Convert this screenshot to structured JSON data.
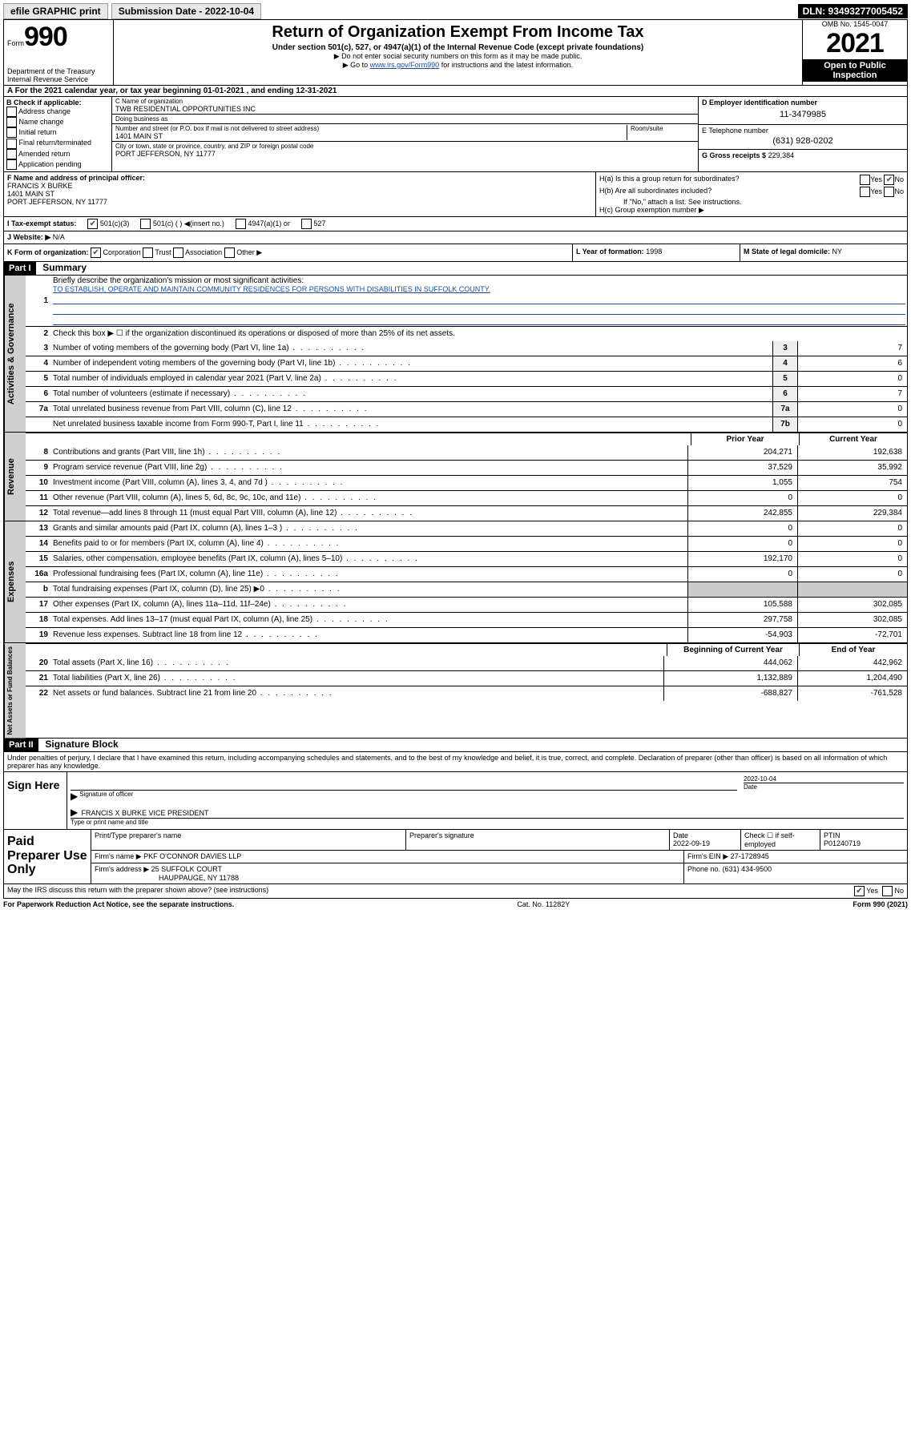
{
  "topbar": {
    "efile": "efile GRAPHIC print",
    "submission_label": "Submission Date - 2022-10-04",
    "dln": "DLN: 93493277005452"
  },
  "header": {
    "form_prefix": "Form",
    "form_no": "990",
    "dept": "Department of the Treasury",
    "irs": "Internal Revenue Service",
    "title": "Return of Organization Exempt From Income Tax",
    "sub": "Under section 501(c), 527, or 4947(a)(1) of the Internal Revenue Code (except private foundations)",
    "note1": "▶ Do not enter social security numbers on this form as it may be made public.",
    "note2_pre": "▶ Go to ",
    "note2_link": "www.irs.gov/Form990",
    "note2_post": " for instructions and the latest information.",
    "omb": "OMB No. 1545-0047",
    "year": "2021",
    "open": "Open to Public Inspection"
  },
  "A": {
    "text": "A For the 2021 calendar year, or tax year beginning 01-01-2021   , and ending 12-31-2021"
  },
  "B": {
    "label": "B Check if applicable:",
    "opts": [
      "Address change",
      "Name change",
      "Initial return",
      "Final return/terminated",
      "Amended return",
      "Application pending"
    ]
  },
  "C": {
    "name_lbl": "C Name of organization",
    "name": "TWB RESIDENTIAL OPPORTUNITIES INC",
    "dba_lbl": "Doing business as",
    "dba": "",
    "addr_lbl": "Number and street (or P.O. box if mail is not delivered to street address)",
    "room_lbl": "Room/suite",
    "addr": "1401 MAIN ST",
    "city_lbl": "City or town, state or province, country, and ZIP or foreign postal code",
    "city": "PORT JEFFERSON, NY  11777"
  },
  "D": {
    "lbl": "D Employer identification number",
    "val": "11-3479985"
  },
  "E": {
    "lbl": "E Telephone number",
    "val": "(631) 928-0202"
  },
  "G": {
    "lbl": "G Gross receipts $",
    "val": "229,384"
  },
  "F": {
    "lbl": "F  Name and address of principal officer:",
    "name": "FRANCIS X BURKE",
    "addr1": "1401 MAIN ST",
    "addr2": "PORT JEFFERSON, NY  11777"
  },
  "H": {
    "a": "H(a)  Is this a group return for subordinates?",
    "a_yes": "Yes",
    "a_no": "No",
    "b": "H(b)  Are all subordinates included?",
    "b_yes": "Yes",
    "b_no": "No",
    "b_note": "If \"No,\" attach a list. See instructions.",
    "c": "H(c)  Group exemption number ▶"
  },
  "I": {
    "lbl": "I   Tax-exempt status:",
    "o1": "501(c)(3)",
    "o2": "501(c) (  ) ◀(insert no.)",
    "o3": "4947(a)(1) or",
    "o4": "527"
  },
  "J": {
    "lbl": "J   Website: ▶",
    "val": "N/A"
  },
  "K": {
    "lbl": "K Form of organization:",
    "o1": "Corporation",
    "o2": "Trust",
    "o3": "Association",
    "o4": "Other ▶"
  },
  "L": {
    "lbl": "L Year of formation:",
    "val": "1998"
  },
  "M": {
    "lbl": "M State of legal domicile:",
    "val": "NY"
  },
  "part1": {
    "hdr": "Part I",
    "title": "Summary",
    "q1": "Briefly describe the organization's mission or most significant activities:",
    "mission": "TO ESTABLISH, OPERATE AND MAINTAIN COMMUNITY RESIDENCES FOR PERSONS WITH DISABILITIES IN SUFFOLK COUNTY.",
    "q2": "Check this box ▶ ☐  if the organization discontinued its operations or disposed of more than 25% of its net assets."
  },
  "gov_lines": [
    {
      "n": "3",
      "d": "Number of voting members of the governing body (Part VI, line 1a)",
      "box": "3",
      "v": "7"
    },
    {
      "n": "4",
      "d": "Number of independent voting members of the governing body (Part VI, line 1b)",
      "box": "4",
      "v": "6"
    },
    {
      "n": "5",
      "d": "Total number of individuals employed in calendar year 2021 (Part V, line 2a)",
      "box": "5",
      "v": "0"
    },
    {
      "n": "6",
      "d": "Total number of volunteers (estimate if necessary)",
      "box": "6",
      "v": "7"
    },
    {
      "n": "7a",
      "d": "Total unrelated business revenue from Part VIII, column (C), line 12",
      "box": "7a",
      "v": "0"
    },
    {
      "n": "",
      "d": "Net unrelated business taxable income from Form 990-T, Part I, line 11",
      "box": "7b",
      "v": "0"
    }
  ],
  "col_hdrs": {
    "prior": "Prior Year",
    "current": "Current Year",
    "boy": "Beginning of Current Year",
    "eoy": "End of Year"
  },
  "rev_lines": [
    {
      "n": "8",
      "d": "Contributions and grants (Part VIII, line 1h)",
      "p": "204,271",
      "c": "192,638"
    },
    {
      "n": "9",
      "d": "Program service revenue (Part VIII, line 2g)",
      "p": "37,529",
      "c": "35,992"
    },
    {
      "n": "10",
      "d": "Investment income (Part VIII, column (A), lines 3, 4, and 7d )",
      "p": "1,055",
      "c": "754"
    },
    {
      "n": "11",
      "d": "Other revenue (Part VIII, column (A), lines 5, 6d, 8c, 9c, 10c, and 11e)",
      "p": "0",
      "c": "0"
    },
    {
      "n": "12",
      "d": "Total revenue—add lines 8 through 11 (must equal Part VIII, column (A), line 12)",
      "p": "242,855",
      "c": "229,384"
    }
  ],
  "exp_lines": [
    {
      "n": "13",
      "d": "Grants and similar amounts paid (Part IX, column (A), lines 1–3 )",
      "p": "0",
      "c": "0"
    },
    {
      "n": "14",
      "d": "Benefits paid to or for members (Part IX, column (A), line 4)",
      "p": "0",
      "c": "0"
    },
    {
      "n": "15",
      "d": "Salaries, other compensation, employee benefits (Part IX, column (A), lines 5–10)",
      "p": "192,170",
      "c": "0"
    },
    {
      "n": "16a",
      "d": "Professional fundraising fees (Part IX, column (A), line 11e)",
      "p": "0",
      "c": "0"
    },
    {
      "n": "b",
      "d": "Total fundraising expenses (Part IX, column (D), line 25) ▶0",
      "p": "",
      "c": "",
      "shade": true
    },
    {
      "n": "17",
      "d": "Other expenses (Part IX, column (A), lines 11a–11d, 11f–24e)",
      "p": "105,588",
      "c": "302,085"
    },
    {
      "n": "18",
      "d": "Total expenses. Add lines 13–17 (must equal Part IX, column (A), line 25)",
      "p": "297,758",
      "c": "302,085"
    },
    {
      "n": "19",
      "d": "Revenue less expenses. Subtract line 18 from line 12",
      "p": "-54,903",
      "c": "-72,701"
    }
  ],
  "na_lines": [
    {
      "n": "20",
      "d": "Total assets (Part X, line 16)",
      "p": "444,062",
      "c": "442,962"
    },
    {
      "n": "21",
      "d": "Total liabilities (Part X, line 26)",
      "p": "1,132,889",
      "c": "1,204,490"
    },
    {
      "n": "22",
      "d": "Net assets or fund balances. Subtract line 21 from line 20",
      "p": "-688,827",
      "c": "-761,528"
    }
  ],
  "vtabs": {
    "gov": "Activities & Governance",
    "rev": "Revenue",
    "exp": "Expenses",
    "na": "Net Assets or Fund Balances"
  },
  "part2": {
    "hdr": "Part II",
    "title": "Signature Block",
    "penalties": "Under penalties of perjury, I declare that I have examined this return, including accompanying schedules and statements, and to the best of my knowledge and belief, it is true, correct, and complete. Declaration of preparer (other than officer) is based on all information of which preparer has any knowledge."
  },
  "sign": {
    "here": "Sign Here",
    "sig_lbl": "Signature of officer",
    "date_lbl": "Date",
    "date": "2022-10-04",
    "name": "FRANCIS X BURKE  VICE PRESIDENT",
    "name_lbl": "Type or print name and title"
  },
  "paid": {
    "title": "Paid Preparer Use Only",
    "h1": "Print/Type preparer's name",
    "h2": "Preparer's signature",
    "h3": "Date",
    "date": "2022-09-19",
    "h4": "Check ☐ if self-employed",
    "h5": "PTIN",
    "ptin": "P01240719",
    "firm_lbl": "Firm's name    ▶",
    "firm": "PKF O'CONNOR DAVIES LLP",
    "ein_lbl": "Firm's EIN ▶",
    "ein": "27-1728945",
    "addr_lbl": "Firm's address ▶",
    "addr1": "25 SUFFOLK COURT",
    "addr2": "HAUPPAUGE, NY  11788",
    "phone_lbl": "Phone no.",
    "phone": "(631) 434-9500"
  },
  "discuss": {
    "q": "May the IRS discuss this return with the preparer shown above? (see instructions)",
    "yes": "Yes",
    "no": "No"
  },
  "footer": {
    "l": "For Paperwork Reduction Act Notice, see the separate instructions.",
    "c": "Cat. No. 11282Y",
    "r": "Form 990 (2021)"
  }
}
